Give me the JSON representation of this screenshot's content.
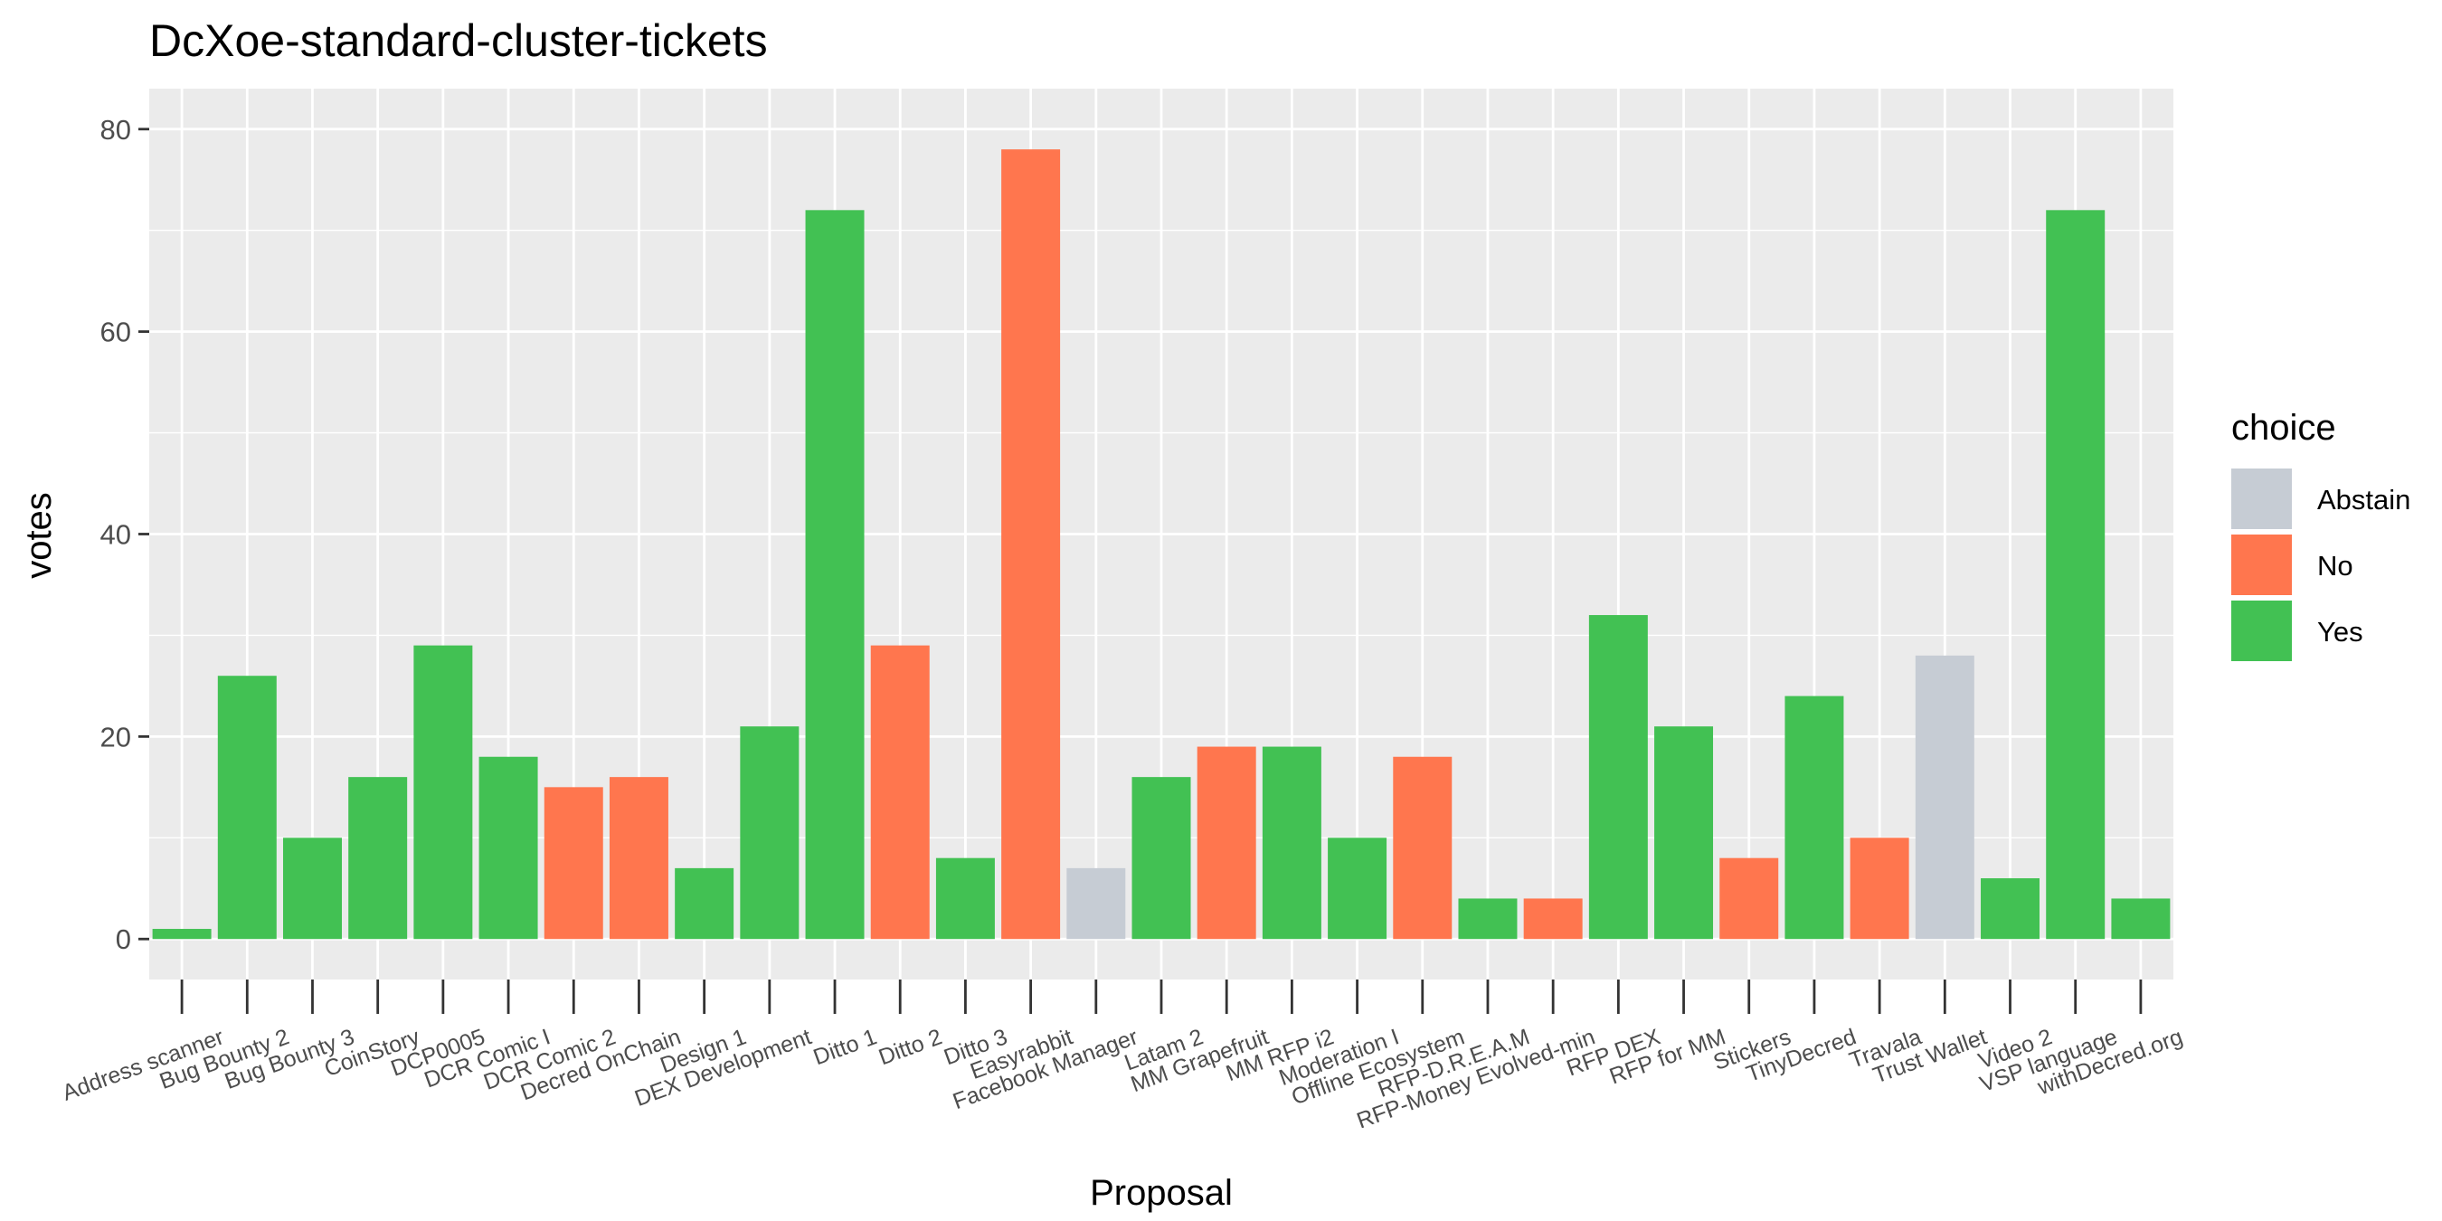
{
  "chart_data": {
    "type": "bar",
    "title": "DcXoe-standard-cluster-tickets",
    "xlabel": "Proposal",
    "ylabel": "votes",
    "ylim": [
      -4,
      84
    ],
    "yticks": [
      0,
      20,
      40,
      60,
      80
    ],
    "grid": true,
    "legend": {
      "title": "choice",
      "placement": "right",
      "entries": [
        "Abstain",
        "No",
        "Yes"
      ]
    },
    "colors": {
      "Abstain": "#c6ccd4",
      "No": "#ff764e",
      "Yes": "#42c153"
    },
    "categories": [
      "Address scanner",
      "Bug Bounty 2",
      "Bug Bounty 3",
      "CoinStory",
      "DCP0005",
      "DCR Comic I",
      "DCR Comic 2",
      "Decred OnChain",
      "Design 1",
      "DEX Development",
      "Ditto 1",
      "Ditto 2",
      "Ditto 3",
      "Easyrabbit",
      "Facebook Manager",
      "Latam 2",
      "MM Grapefruit",
      "MM RFP i2",
      "Moderation I",
      "Offline Ecosystem",
      "RFP-D.R.E.A.M",
      "RFP-Money Evolved-min",
      "RFP DEX",
      "RFP for MM",
      "Stickers",
      "TinyDecred",
      "Travala",
      "Trust Wallet",
      "Video 2",
      "VSP language",
      "withDecred.org"
    ],
    "values": [
      1,
      26,
      10,
      16,
      29,
      18,
      15,
      16,
      7,
      21,
      72,
      29,
      8,
      78,
      7,
      16,
      19,
      19,
      10,
      18,
      4,
      4,
      32,
      21,
      8,
      24,
      10,
      28,
      6,
      72,
      4
    ],
    "choices": [
      "Yes",
      "Yes",
      "Yes",
      "Yes",
      "Yes",
      "Yes",
      "No",
      "No",
      "Yes",
      "Yes",
      "Yes",
      "No",
      "Yes",
      "No",
      "Abstain",
      "Yes",
      "No",
      "Yes",
      "Yes",
      "No",
      "Yes",
      "No",
      "Yes",
      "Yes",
      "No",
      "Yes",
      "No",
      "Abstain",
      "Yes",
      "Yes",
      "Yes"
    ]
  }
}
